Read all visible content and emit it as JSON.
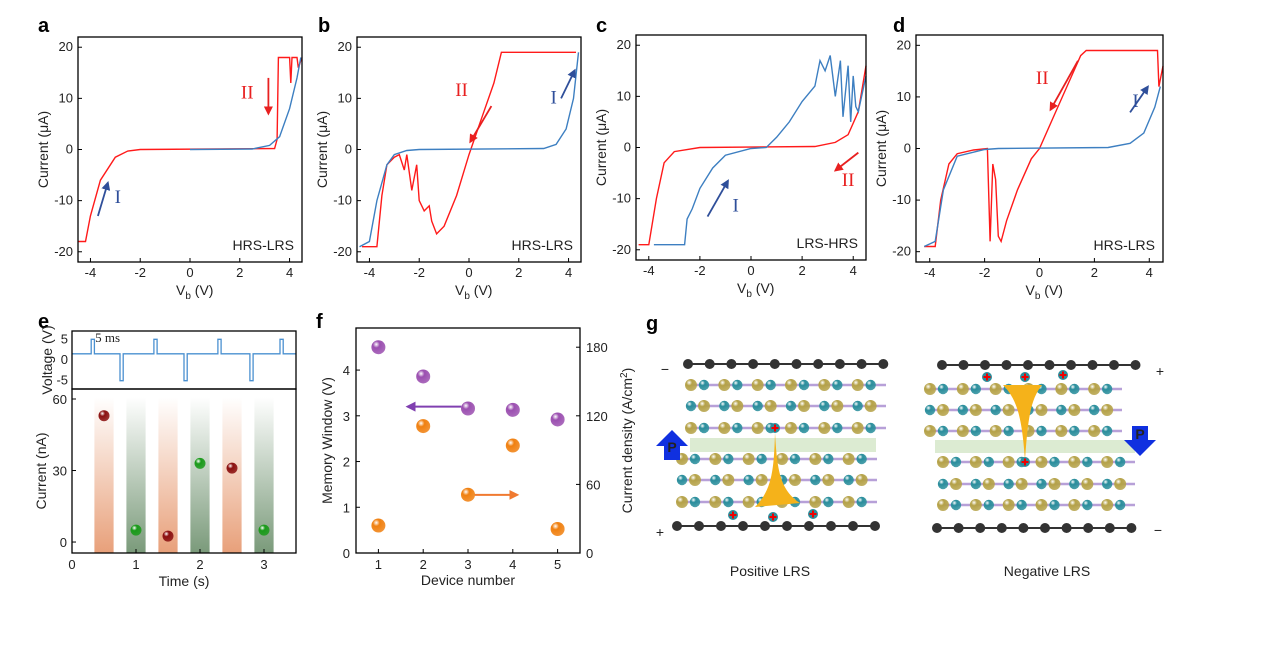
{
  "panel_letters": [
    "a",
    "b",
    "c",
    "d",
    "e",
    "f",
    "g"
  ],
  "chart_data": [
    {
      "panel": "a",
      "type": "line",
      "ylabel": "Current (μA)",
      "xlabel_main": "V",
      "xlabel_sub": "b",
      "xlabel_unit": " (V)",
      "xlim": [
        -4.5,
        4.5
      ],
      "ylim": [
        -22,
        22
      ],
      "xticks": [
        -4,
        -2,
        0,
        2,
        4
      ],
      "yticks": [
        -20,
        -10,
        0,
        10,
        20
      ],
      "inset_label": "HRS-LRS",
      "series": [
        {
          "color": "#ff1a1a",
          "points": [
            [
              -4.5,
              -18
            ],
            [
              -4.2,
              -18
            ],
            [
              -4.0,
              -13
            ],
            [
              -3.6,
              -6
            ],
            [
              -3.0,
              -1.5
            ],
            [
              -2.5,
              -0.3
            ],
            [
              -2,
              0
            ],
            [
              3.4,
              0.2
            ],
            [
              3.5,
              2
            ],
            [
              3.55,
              18
            ],
            [
              4.0,
              18
            ],
            [
              4.05,
              13
            ],
            [
              4.1,
              18
            ],
            [
              4.3,
              18
            ],
            [
              4.35,
              16
            ],
            [
              4.5,
              18
            ]
          ]
        },
        {
          "color": "#3d7fc1",
          "points": [
            [
              0,
              0
            ],
            [
              2.5,
              0.1
            ],
            [
              3.2,
              0.8
            ],
            [
              3.6,
              2.5
            ],
            [
              4.0,
              8
            ],
            [
              4.3,
              14
            ],
            [
              4.45,
              18
            ]
          ]
        }
      ],
      "arrows": [
        {
          "color": "#2f4f9a",
          "from": [
            -3.7,
            -13
          ],
          "to": [
            -3.3,
            -6.5
          ]
        },
        {
          "color": "#e82020",
          "from": [
            3.15,
            14
          ],
          "to": [
            3.15,
            7
          ]
        }
      ],
      "annotations": [
        {
          "text": "I",
          "color": "#2f4f9a",
          "x": -2.9,
          "y": -10.5
        },
        {
          "text": "II",
          "color": "#e82020",
          "x": 2.3,
          "y": 10
        }
      ]
    },
    {
      "panel": "b",
      "type": "line",
      "ylabel": "Current (μA)",
      "xlabel_main": "V",
      "xlabel_sub": "b",
      "xlabel_unit": " (V)",
      "xlim": [
        -4.5,
        4.5
      ],
      "ylim": [
        -22,
        22
      ],
      "xticks": [
        -4,
        -2,
        0,
        2,
        4
      ],
      "yticks": [
        -20,
        -10,
        0,
        10,
        20
      ],
      "inset_label": "HRS-LRS",
      "series": [
        {
          "color": "#ff1a1a",
          "points": [
            [
              -4.3,
              -19
            ],
            [
              -3.7,
              -19
            ],
            [
              -3.5,
              -9
            ],
            [
              -3.3,
              -3
            ],
            [
              -3,
              -1.5
            ],
            [
              -2.8,
              -1
            ],
            [
              -2.6,
              -4
            ],
            [
              -2.5,
              -1
            ],
            [
              -2.3,
              -8
            ],
            [
              -2.1,
              -3
            ],
            [
              -2,
              -10
            ],
            [
              -1.8,
              -12
            ],
            [
              -1.6,
              -11
            ],
            [
              -1.5,
              -14
            ],
            [
              -1.3,
              -16.5
            ],
            [
              -1,
              -15
            ],
            [
              -0.5,
              -9
            ],
            [
              0,
              -1
            ],
            [
              0.5,
              6
            ],
            [
              1,
              13
            ],
            [
              1.3,
              19
            ],
            [
              4.3,
              19
            ]
          ]
        },
        {
          "color": "#3d7fc1",
          "points": [
            [
              -4.4,
              -19
            ],
            [
              -4.0,
              -18
            ],
            [
              -3.7,
              -10
            ],
            [
              -3.3,
              -3
            ],
            [
              -3,
              -1
            ],
            [
              -2.5,
              -0.2
            ],
            [
              -2,
              0
            ],
            [
              3,
              0.2
            ],
            [
              3.5,
              1
            ],
            [
              3.9,
              4
            ],
            [
              4.2,
              10
            ],
            [
              4.4,
              19
            ]
          ]
        }
      ],
      "arrows": [
        {
          "color": "#e82020",
          "from": [
            0.9,
            8.5
          ],
          "to": [
            0.05,
            1.5
          ]
        },
        {
          "color": "#2f4f9a",
          "from": [
            3.7,
            10
          ],
          "to": [
            4.25,
            15.5
          ]
        }
      ],
      "annotations": [
        {
          "text": "II",
          "color": "#e82020",
          "x": -0.3,
          "y": 10.5
        },
        {
          "text": "I",
          "color": "#2f4f9a",
          "x": 3.4,
          "y": 9
        }
      ]
    },
    {
      "panel": "c",
      "type": "line",
      "ylabel": "Current (μA)",
      "xlabel_main": "V",
      "xlabel_sub": "b",
      "xlabel_unit": " (V)",
      "xlim": [
        -4.5,
        4.5
      ],
      "ylim": [
        -22,
        22
      ],
      "xticks": [
        -4,
        -2,
        0,
        2,
        4
      ],
      "yticks": [
        -20,
        -10,
        0,
        10,
        20
      ],
      "inset_label": "LRS-HRS",
      "series": [
        {
          "color": "#ff1a1a",
          "points": [
            [
              -4.4,
              -19
            ],
            [
              -4,
              -19
            ],
            [
              -3.7,
              -10
            ],
            [
              -3.4,
              -3
            ],
            [
              -3,
              -0.8
            ],
            [
              -2,
              0
            ],
            [
              2.5,
              0.2
            ],
            [
              3.3,
              1
            ],
            [
              3.8,
              2.5
            ],
            [
              4.2,
              7
            ],
            [
              4.5,
              16
            ]
          ]
        },
        {
          "color": "#3d7fc1",
          "points": [
            [
              -3.8,
              -19
            ],
            [
              -2.6,
              -19
            ],
            [
              -2.5,
              -14
            ],
            [
              -2.3,
              -12
            ],
            [
              -2,
              -8
            ],
            [
              -1.5,
              -4
            ],
            [
              -1,
              -1.5
            ],
            [
              0,
              -0.2
            ],
            [
              0.6,
              0
            ],
            [
              1,
              2
            ],
            [
              1.5,
              5
            ],
            [
              2,
              9
            ],
            [
              2.5,
              12
            ],
            [
              2.7,
              17
            ],
            [
              2.9,
              15
            ],
            [
              3.1,
              18
            ],
            [
              3.3,
              10
            ],
            [
              3.5,
              17
            ],
            [
              3.6,
              6
            ],
            [
              3.8,
              16
            ],
            [
              3.9,
              5
            ],
            [
              4.0,
              14
            ],
            [
              4.1,
              8
            ],
            [
              4.2,
              7
            ],
            [
              4.5,
              14
            ]
          ]
        }
      ],
      "arrows": [
        {
          "color": "#2f4f9a",
          "from": [
            -1.7,
            -13.5
          ],
          "to": [
            -0.9,
            -6.5
          ]
        },
        {
          "color": "#e82020",
          "from": [
            4.2,
            -1
          ],
          "to": [
            3.3,
            -4.5
          ]
        }
      ],
      "annotations": [
        {
          "text": "I",
          "color": "#2f4f9a",
          "x": -0.6,
          "y": -12.5
        },
        {
          "text": "II",
          "color": "#e82020",
          "x": 3.8,
          "y": -7.5
        }
      ]
    },
    {
      "panel": "d",
      "type": "line",
      "ylabel": "Current (μA)",
      "xlabel_main": "V",
      "xlabel_sub": "b",
      "xlabel_unit": " (V)",
      "xlim": [
        -4.5,
        4.5
      ],
      "ylim": [
        -22,
        22
      ],
      "xticks": [
        -4,
        -2,
        0,
        2,
        4
      ],
      "yticks": [
        -20,
        -10,
        0,
        10,
        20
      ],
      "inset_label": "HRS-LRS",
      "series": [
        {
          "color": "#ff1a1a",
          "points": [
            [
              -4.2,
              -19
            ],
            [
              -3.8,
              -19
            ],
            [
              -3.6,
              -10
            ],
            [
              -3.3,
              -3
            ],
            [
              -3,
              -1
            ],
            [
              -2.4,
              -0.3
            ],
            [
              -1.9,
              0
            ],
            [
              -1.8,
              -18
            ],
            [
              -1.7,
              -3
            ],
            [
              -1.6,
              -6
            ],
            [
              -1.5,
              -17
            ],
            [
              -1.4,
              -18
            ],
            [
              -1.2,
              -14
            ],
            [
              -0.8,
              -8
            ],
            [
              -0.3,
              -2
            ],
            [
              0,
              0
            ],
            [
              0.5,
              6
            ],
            [
              1,
              12
            ],
            [
              1.5,
              18
            ],
            [
              1.7,
              19
            ],
            [
              4.3,
              19
            ],
            [
              4.35,
              12
            ],
            [
              4.5,
              16
            ]
          ]
        },
        {
          "color": "#3d7fc1",
          "points": [
            [
              -4.2,
              -19
            ],
            [
              -3.8,
              -18
            ],
            [
              -3.5,
              -8
            ],
            [
              -3,
              -1.5
            ],
            [
              -2,
              -0.2
            ],
            [
              -1.5,
              0
            ],
            [
              2.5,
              0.2
            ],
            [
              3.3,
              1
            ],
            [
              3.8,
              3
            ],
            [
              4.2,
              8
            ],
            [
              4.4,
              12
            ]
          ]
        }
      ],
      "arrows": [
        {
          "color": "#e82020",
          "from": [
            1.4,
            17
          ],
          "to": [
            0.4,
            7.5
          ]
        },
        {
          "color": "#2f4f9a",
          "from": [
            3.3,
            7
          ],
          "to": [
            3.95,
            12
          ]
        }
      ],
      "annotations": [
        {
          "text": "II",
          "color": "#e82020",
          "x": 0.1,
          "y": 12.5
        },
        {
          "text": "I",
          "color": "#2f4f9a",
          "x": 3.5,
          "y": 8
        }
      ]
    },
    {
      "panel": "e",
      "type": "scatter",
      "voltage": {
        "ylabel": "Voltage (V)",
        "ylim": [
          -7,
          7
        ],
        "yticks": [
          -5,
          0,
          5
        ],
        "baseline": 1.5,
        "pulse_width_label": "5 ms",
        "color": "#4a90d0",
        "pulses": [
          {
            "t": 0.3,
            "v": 5
          },
          {
            "t": 0.75,
            "v": -5
          },
          {
            "t": 1.28,
            "v": 5
          },
          {
            "t": 1.75,
            "v": -5
          },
          {
            "t": 2.28,
            "v": 5
          },
          {
            "t": 2.78,
            "v": -5
          },
          {
            "t": 3.25,
            "v": 5
          }
        ]
      },
      "xlabel": "Time (s)",
      "ylabel": "Current (nA)",
      "xlim": [
        0,
        3.5
      ],
      "ylim": [
        -4.6,
        64.2
      ],
      "xticks": [
        0,
        1,
        2,
        3
      ],
      "yticks": [
        0,
        30,
        60
      ],
      "bands": [
        {
          "from": 0.35,
          "to": 0.65,
          "color": "#e8a07a"
        },
        {
          "from": 0.85,
          "to": 1.15,
          "color": "#7a9a7a"
        },
        {
          "from": 1.35,
          "to": 1.65,
          "color": "#e8a07a"
        },
        {
          "from": 1.85,
          "to": 2.15,
          "color": "#7a9a7a"
        },
        {
          "from": 2.35,
          "to": 2.65,
          "color": "#e8a07a"
        },
        {
          "from": 2.85,
          "to": 3.15,
          "color": "#7a9a7a"
        }
      ],
      "points": [
        {
          "t": 0.5,
          "current": 53,
          "color": "#8b1010"
        },
        {
          "t": 1.0,
          "current": 5,
          "color": "#1a9a1a"
        },
        {
          "t": 1.5,
          "current": 2.5,
          "color": "#8b1010"
        },
        {
          "t": 2.0,
          "current": 33,
          "color": "#1a9a1a"
        },
        {
          "t": 2.5,
          "current": 31,
          "color": "#8b1010"
        },
        {
          "t": 3.0,
          "current": 5,
          "color": "#1a9a1a"
        }
      ]
    },
    {
      "panel": "f",
      "type": "scatter",
      "xlabel": "Device number",
      "ylabel": "Memory Window (V)",
      "ylabel2_main": "Current density (A/cm",
      "ylabel2_sup": "2",
      "ylabel2_end": ")",
      "xlim": [
        0.5,
        5.5
      ],
      "ylim": [
        0,
        4.92
      ],
      "ylim2": [
        0,
        196.8
      ],
      "xticks": [
        1,
        2,
        3,
        4,
        5
      ],
      "yticks": [
        0,
        1,
        2,
        3,
        4
      ],
      "yticks2": [
        0,
        60,
        120,
        180
      ],
      "series": [
        {
          "axis": "left",
          "color": "#9b4fb0",
          "x": [
            1,
            2,
            3,
            4,
            5
          ],
          "values": [
            4.5,
            3.86,
            3.16,
            3.13,
            2.92
          ]
        },
        {
          "axis": "right",
          "color": "#f08010",
          "x": [
            1,
            2,
            3,
            4,
            5
          ],
          "values": [
            24,
            111,
            51,
            94,
            21
          ]
        }
      ],
      "arrows": [
        {
          "color": "#8040b0",
          "from": [
            2.85,
            3.2
          ],
          "to": [
            1.65,
            3.2
          ]
        },
        {
          "color": "#f07a30",
          "from": [
            3.15,
            1.27
          ],
          "to": [
            4.1,
            1.27
          ]
        }
      ]
    }
  ],
  "diagram_g": {
    "left": {
      "caption": "Positive LRS",
      "top_sign": "−",
      "bottom_sign": "+",
      "polarization": "P"
    },
    "right": {
      "caption": "Negative LRS",
      "top_sign": "+",
      "bottom_sign": "−",
      "polarization": "P"
    },
    "colors": {
      "electrode": "#333333",
      "gold": "#b5a248",
      "teal": "#2a8e9c",
      "bond": "#b7a0d8",
      "filament": "#f5b21a",
      "arrow": "#1030e0",
      "band": "#dcebd2"
    }
  }
}
